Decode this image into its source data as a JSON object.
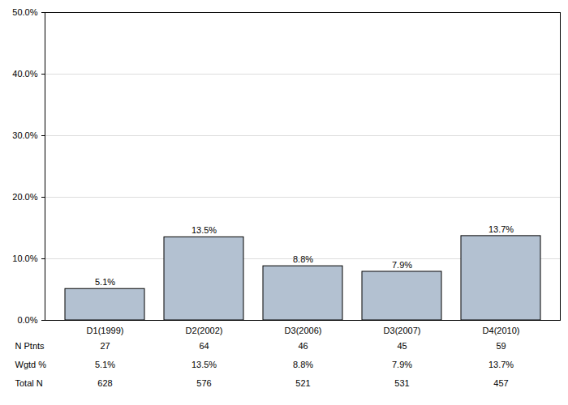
{
  "chart_data": {
    "type": "bar",
    "categories": [
      "D1(1999)",
      "D2(2002)",
      "D3(2006)",
      "D3(2007)",
      "D4(2010)"
    ],
    "values": [
      5.1,
      13.5,
      8.8,
      7.9,
      13.7
    ],
    "value_labels": [
      "5.1%",
      "13.5%",
      "8.8%",
      "7.9%",
      "13.7%"
    ],
    "color": "#b3c1d1",
    "ylim": [
      0,
      50
    ],
    "yticks": [
      {
        "value": 0,
        "label": "0.0%"
      },
      {
        "value": 10,
        "label": "10.0%"
      },
      {
        "value": 20,
        "label": "20.0%"
      },
      {
        "value": 30,
        "label": "30.0%"
      },
      {
        "value": 40,
        "label": "40.0%"
      },
      {
        "value": 50,
        "label": "50.0%"
      }
    ],
    "grid": true,
    "data_labels": true,
    "table": [
      {
        "label": "N Ptnts",
        "values": [
          27,
          64,
          46,
          45,
          59
        ]
      },
      {
        "label": "Wgtd %",
        "values": [
          5.1,
          13.5,
          8.8,
          7.9,
          13.7
        ],
        "value_labels": [
          "5.1%",
          "13.5%",
          "8.8%",
          "7.9%",
          "13.7%"
        ]
      },
      {
        "label": "Total N",
        "values": [
          628,
          576,
          521,
          531,
          457
        ]
      }
    ]
  }
}
